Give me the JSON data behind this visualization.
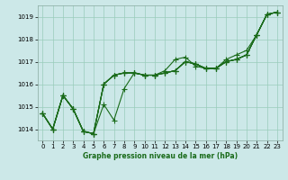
{
  "xlabel": "Graphe pression niveau de la mer (hPa)",
  "ylim": [
    1013.5,
    1019.5
  ],
  "xlim": [
    -0.5,
    23.5
  ],
  "yticks": [
    1014,
    1015,
    1016,
    1017,
    1018,
    1019
  ],
  "xticks": [
    0,
    1,
    2,
    3,
    4,
    5,
    6,
    7,
    8,
    9,
    10,
    11,
    12,
    13,
    14,
    15,
    16,
    17,
    18,
    19,
    20,
    21,
    22,
    23
  ],
  "bg_color": "#cce8e8",
  "grid_color": "#99ccbb",
  "line_color": "#1a6b1a",
  "series": [
    [
      1014.7,
      1014.0,
      1015.5,
      1014.9,
      1013.9,
      1013.8,
      1015.1,
      1014.4,
      1015.8,
      1016.5,
      1016.4,
      1016.4,
      1016.6,
      1017.1,
      1017.2,
      1016.8,
      1016.7,
      1016.7,
      1017.1,
      1017.3,
      1017.5,
      1018.2,
      1019.1,
      1019.2
    ],
    [
      1014.7,
      1014.0,
      1015.5,
      1014.9,
      1013.9,
      1013.8,
      1016.0,
      1016.4,
      1016.5,
      1016.5,
      1016.4,
      1016.4,
      1016.5,
      1016.6,
      1017.0,
      1016.9,
      1016.7,
      1016.7,
      1017.0,
      1017.1,
      1017.3,
      1018.2,
      1019.1,
      1019.2
    ],
    [
      1014.7,
      1014.0,
      1015.5,
      1014.9,
      1013.9,
      1013.8,
      1016.0,
      1016.4,
      1016.5,
      1016.5,
      1016.4,
      1016.4,
      1016.5,
      1016.6,
      1017.0,
      1016.9,
      1016.7,
      1016.7,
      1017.0,
      1017.1,
      1017.3,
      1018.2,
      1019.1,
      1019.2
    ],
    [
      1014.7,
      1014.0,
      1015.5,
      1014.9,
      1013.9,
      1013.8,
      1016.0,
      1016.4,
      1016.5,
      1016.5,
      1016.4,
      1016.4,
      1016.5,
      1016.6,
      1017.0,
      1016.9,
      1016.7,
      1016.7,
      1017.0,
      1017.1,
      1017.3,
      1018.2,
      1019.1,
      1019.2
    ],
    [
      1014.7,
      1014.0,
      1015.5,
      1014.9,
      1013.9,
      1013.8,
      1016.0,
      1016.4,
      1016.5,
      1016.5,
      1016.4,
      1016.4,
      1016.5,
      1016.6,
      1017.0,
      1016.9,
      1016.7,
      1016.7,
      1017.0,
      1017.1,
      1017.3,
      1018.2,
      1019.1,
      1019.2
    ]
  ],
  "marker": "+",
  "markersize": 4,
  "linewidth": 0.8,
  "figsize": [
    3.2,
    2.0
  ],
  "dpi": 100
}
